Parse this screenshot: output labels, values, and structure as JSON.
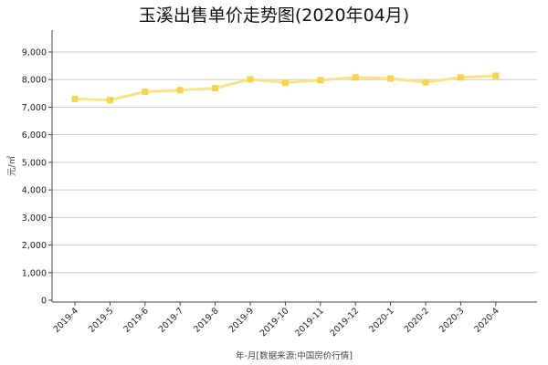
{
  "chart_data": {
    "type": "line",
    "title": "玉溪出售单价走势图(2020年04月)",
    "xlabel": "年-月[数据来源:中国房价行情]",
    "ylabel": "元/㎡",
    "ylim": [
      0,
      9800
    ],
    "yticks": [
      0,
      1000,
      2000,
      3000,
      4000,
      5000,
      6000,
      7000,
      8000,
      9000
    ],
    "ytick_labels": [
      "0",
      "1,000",
      "2,000",
      "3,000",
      "4,000",
      "5,000",
      "6,000",
      "7,000",
      "8,000",
      "9,000"
    ],
    "grid": true,
    "categories": [
      "2019-4",
      "2019-5",
      "2019-6",
      "2019-7",
      "2019-8",
      "2019-9",
      "2019-10",
      "2019-11",
      "2019-12",
      "2020-1",
      "2020-2",
      "2020-3",
      "2020-4"
    ],
    "series": [
      {
        "values": [
          7300,
          7260,
          7560,
          7620,
          7690,
          8010,
          7890,
          7980,
          8080,
          8040,
          7900,
          8080,
          8140
        ],
        "color": "#f5d44a",
        "line_color": "#f7e38c",
        "marker": "square"
      }
    ]
  }
}
